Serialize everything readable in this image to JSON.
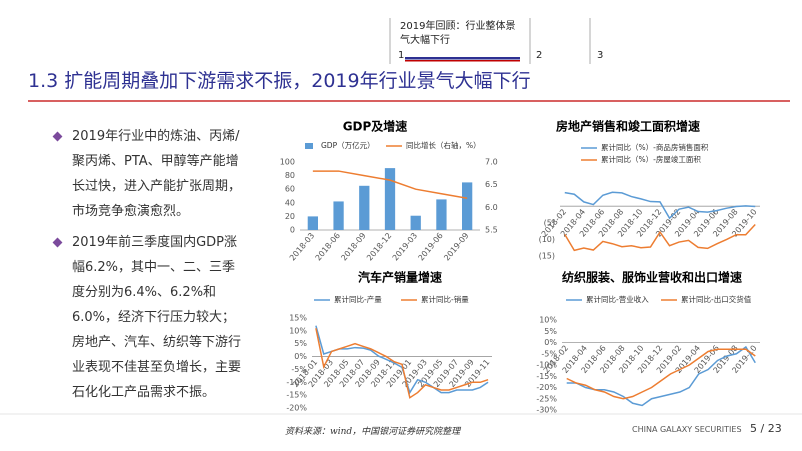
{
  "header": {
    "nav": "2019年回顾：行业整体景气大幅下行",
    "steps": [
      "1",
      "2",
      "3"
    ]
  },
  "title": "1.3  扩能周期叠加下游需求不振，2019年行业景气大幅下行",
  "bullets": [
    "2019年行业中的炼油、丙烯/聚丙烯、PTA、甲醇等产能增长过快，进入产能扩张周期，市场竞争愈演愈烈。",
    "2019年前三季度国内GDP涨幅6.2%，其中一、二、三季度分别为6.4%、6.2%和6.0%，经济下行压力较大；房地产、汽车、纺织等下游行业表现不佳甚至负增长，主要石化化工产品需求不振。"
  ],
  "source": "资料来源：wind，中国银河证券研究院整理",
  "footer": {
    "company": "CHINA GALAXY SECURITIES",
    "page": "5 / 23"
  },
  "chart_data": [
    {
      "type": "bar",
      "title": "GDP及增速",
      "categories": [
        "2018-03",
        "2018-06",
        "2018-09",
        "2018-12",
        "2019-03",
        "2019-06",
        "2019-09"
      ],
      "series": [
        {
          "name": "GDP（万亿元）",
          "color": "#5b9bd5",
          "values": [
            20,
            42,
            65,
            91,
            21,
            45,
            70
          ]
        },
        {
          "name": "同比增长（右轴，%）",
          "color": "#ed7d31",
          "axis": "y2",
          "values": [
            6.8,
            6.8,
            6.7,
            6.6,
            6.4,
            6.3,
            6.2
          ]
        }
      ],
      "ylim": [
        0,
        100
      ],
      "yticks": [
        0,
        20,
        40,
        60,
        80,
        100
      ],
      "y2lim": [
        5.5,
        7.0
      ],
      "y2ticks": [
        5.5,
        {
          "value": 6,
          "label": "6.0"
        },
        6.5,
        {
          "value": 7,
          "label": "7.0"
        }
      ],
      "grid": false
    },
    {
      "type": "line",
      "title": "房地产销售和竣工面积增速",
      "categories": [
        "2018-02",
        null,
        "2018-04",
        null,
        "2018-06",
        null,
        "2018-08",
        null,
        "2018-10",
        null,
        "2018-12",
        null,
        "2019-02",
        null,
        "2019-04",
        null,
        "2019-06",
        null,
        "2019-08",
        null,
        "2019-10"
      ],
      "series": [
        {
          "name": "累计同比（%）-商品房销售面积",
          "color": "#5b9bd5",
          "values": [
            4.1,
            3.6,
            1.3,
            0.5,
            3.3,
            4.2,
            4.0,
            2.9,
            2.2,
            1.4,
            1.3,
            -3.6,
            -0.9,
            -0.3,
            -1.6,
            -1.8,
            -1.3,
            -0.6,
            -0.1,
            0.1,
            -0.1
          ]
        },
        {
          "name": "累计同比（%）-房屋竣工面积",
          "color": "#ed7d31",
          "values": [
            -8.5,
            -13.3,
            -12.6,
            -13.2,
            -10.6,
            -11.3,
            -12.2,
            -11.9,
            -12.5,
            -12.3,
            -7.8,
            -11.9,
            -10.8,
            -10.3,
            -12.4,
            -12.7,
            -11.3,
            -10.0,
            -8.6,
            -8.6,
            -5.5
          ]
        }
      ],
      "ylim": [
        -15,
        10
      ],
      "yticks": [
        {
          "value": -5,
          "label": "(5)"
        },
        {
          "value": -10,
          "label": "(10)"
        },
        {
          "value": -15,
          "label": "(15)"
        }
      ],
      "grid": false
    },
    {
      "type": "line",
      "title": "汽车产销量增速",
      "categories": [
        "2018-01",
        null,
        "2018-03",
        null,
        "2018-05",
        null,
        "2018-07",
        null,
        "2018-09",
        null,
        "2018-11",
        null,
        "2019-01",
        null,
        "2019-03",
        null,
        "2019-05",
        null,
        "2019-07",
        null,
        "2019-09",
        null,
        "2019-11"
      ],
      "series": [
        {
          "name": "累计同比-产量",
          "color": "#5b9bd5",
          "values": [
            12,
            1,
            2,
            3,
            3,
            3.5,
            3.3,
            2.5,
            0.2,
            -1.1,
            -2.5,
            -4.2,
            -14,
            -9,
            -10,
            -12,
            -14,
            -14,
            -13,
            -13,
            -13,
            -12,
            -10
          ]
        },
        {
          "name": "累计同比-销量",
          "color": "#ed7d31",
          "values": [
            11,
            -4,
            2,
            3,
            4,
            5,
            4,
            3,
            1.5,
            0,
            -2,
            -3,
            -16,
            -14,
            -11,
            -12,
            -13,
            -13,
            -12,
            -11,
            -10,
            -10,
            -9
          ]
        }
      ],
      "ylim": [
        -20,
        15
      ],
      "yticks": [
        {
          "value": 15,
          "label": "15%"
        },
        {
          "value": 10,
          "label": "10%"
        },
        {
          "value": 5,
          "label": "5%"
        },
        {
          "value": 0,
          "label": "0%"
        },
        {
          "value": -5,
          "label": "-5%"
        },
        {
          "value": -10,
          "label": "-10%"
        },
        {
          "value": -15,
          "label": "-15%"
        },
        {
          "value": -20,
          "label": "-20%"
        }
      ],
      "grid": false
    },
    {
      "type": "line",
      "title": "纺织服装、服饰业营收和出口增速",
      "categories": [
        "2018-02",
        null,
        "2018-04",
        null,
        "2018-06",
        null,
        "2018-08",
        null,
        "2018-10",
        null,
        "2018-12",
        null,
        "2019-02",
        null,
        "2019-04",
        null,
        "2019-06",
        null,
        "2019-08",
        null,
        "2019-10"
      ],
      "series": [
        {
          "name": "累计同比-营业收入",
          "color": "#5b9bd5",
          "values": [
            -18,
            -18,
            -20,
            -21,
            -21,
            -22,
            -24,
            -27,
            -28,
            -25,
            -24,
            -23,
            -22,
            -20,
            -14,
            -12,
            -8,
            -6,
            -5,
            -2,
            -9
          ]
        },
        {
          "name": "累计同比-出口交货值",
          "color": "#ed7d31",
          "values": [
            -16,
            -18,
            -19,
            -21,
            -22,
            -24,
            -25,
            -24,
            -22,
            -20,
            -17,
            -14,
            -12,
            -10,
            -7,
            -4,
            -3,
            -3,
            -3,
            -3,
            -6
          ]
        }
      ],
      "ylim": [
        -30,
        10
      ],
      "yticks": [
        {
          "value": 10,
          "label": "10%"
        },
        {
          "value": 5,
          "label": "5%"
        },
        {
          "value": 0,
          "label": "0%"
        },
        {
          "value": -5,
          "label": "-5%"
        },
        {
          "value": -10,
          "label": "-10%"
        },
        {
          "value": -15,
          "label": "-15%"
        },
        {
          "value": -20,
          "label": "-20%"
        },
        {
          "value": -25,
          "label": "-25%"
        },
        {
          "value": -30,
          "label": "-30%"
        }
      ],
      "grid": false
    }
  ]
}
